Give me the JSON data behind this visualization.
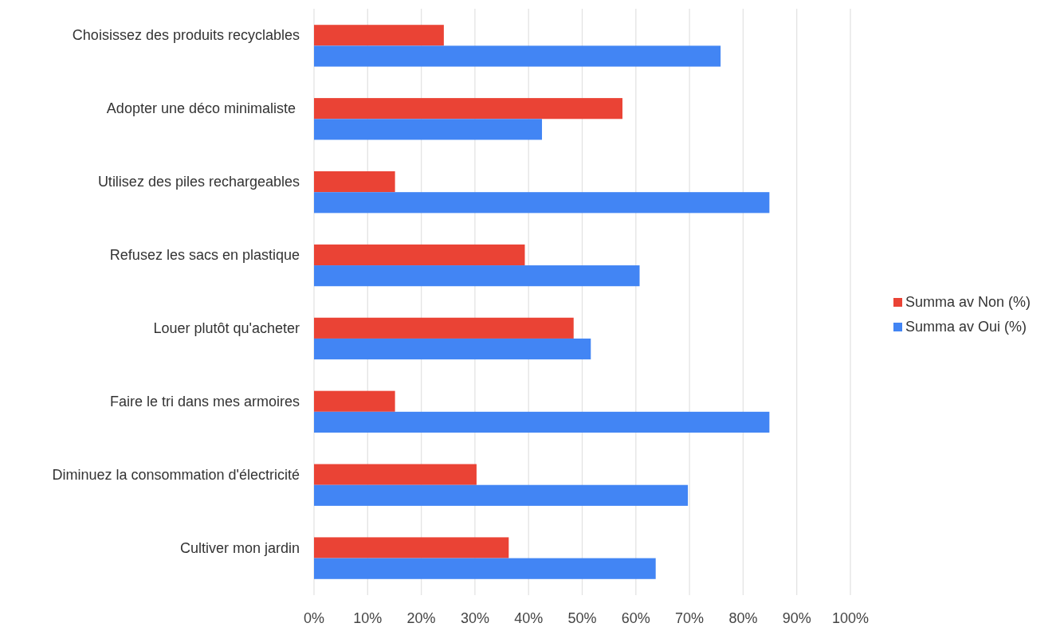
{
  "chart_data": {
    "type": "bar",
    "orientation": "horizontal",
    "categories": [
      "Choisissez des produits recyclables",
      "Adopter une déco minimaliste ",
      "Utilisez des piles rechargeables",
      "Refusez les sacs en plastique",
      "Louer plutôt qu'acheter",
      "Faire le tri dans mes armoires",
      "Diminuez la consommation d'électricité",
      "Cultiver mon jardin"
    ],
    "series": [
      {
        "name": "Summa av Non (%)",
        "color": "#ea4335",
        "values": [
          24.2,
          57.5,
          15.1,
          39.3,
          48.4,
          15.1,
          30.3,
          36.3
        ]
      },
      {
        "name": "Summa av Oui (%)",
        "color": "#4285f4",
        "values": [
          75.8,
          42.5,
          84.9,
          60.7,
          51.6,
          84.9,
          69.7,
          63.7
        ]
      }
    ],
    "xlim": [
      0,
      100
    ],
    "xticks": [
      {
        "value": 0,
        "label": "0%"
      },
      {
        "value": 10,
        "label": "10%"
      },
      {
        "value": 20,
        "label": "20%"
      },
      {
        "value": 30,
        "label": "30%"
      },
      {
        "value": 40,
        "label": "40%"
      },
      {
        "value": 50,
        "label": "50%"
      },
      {
        "value": 60,
        "label": "60%"
      },
      {
        "value": 70,
        "label": "70%"
      },
      {
        "value": 80,
        "label": "80%"
      },
      {
        "value": 90,
        "label": "90%"
      },
      {
        "value": 100,
        "label": "100%"
      }
    ],
    "grid": "x",
    "legend": "right"
  }
}
